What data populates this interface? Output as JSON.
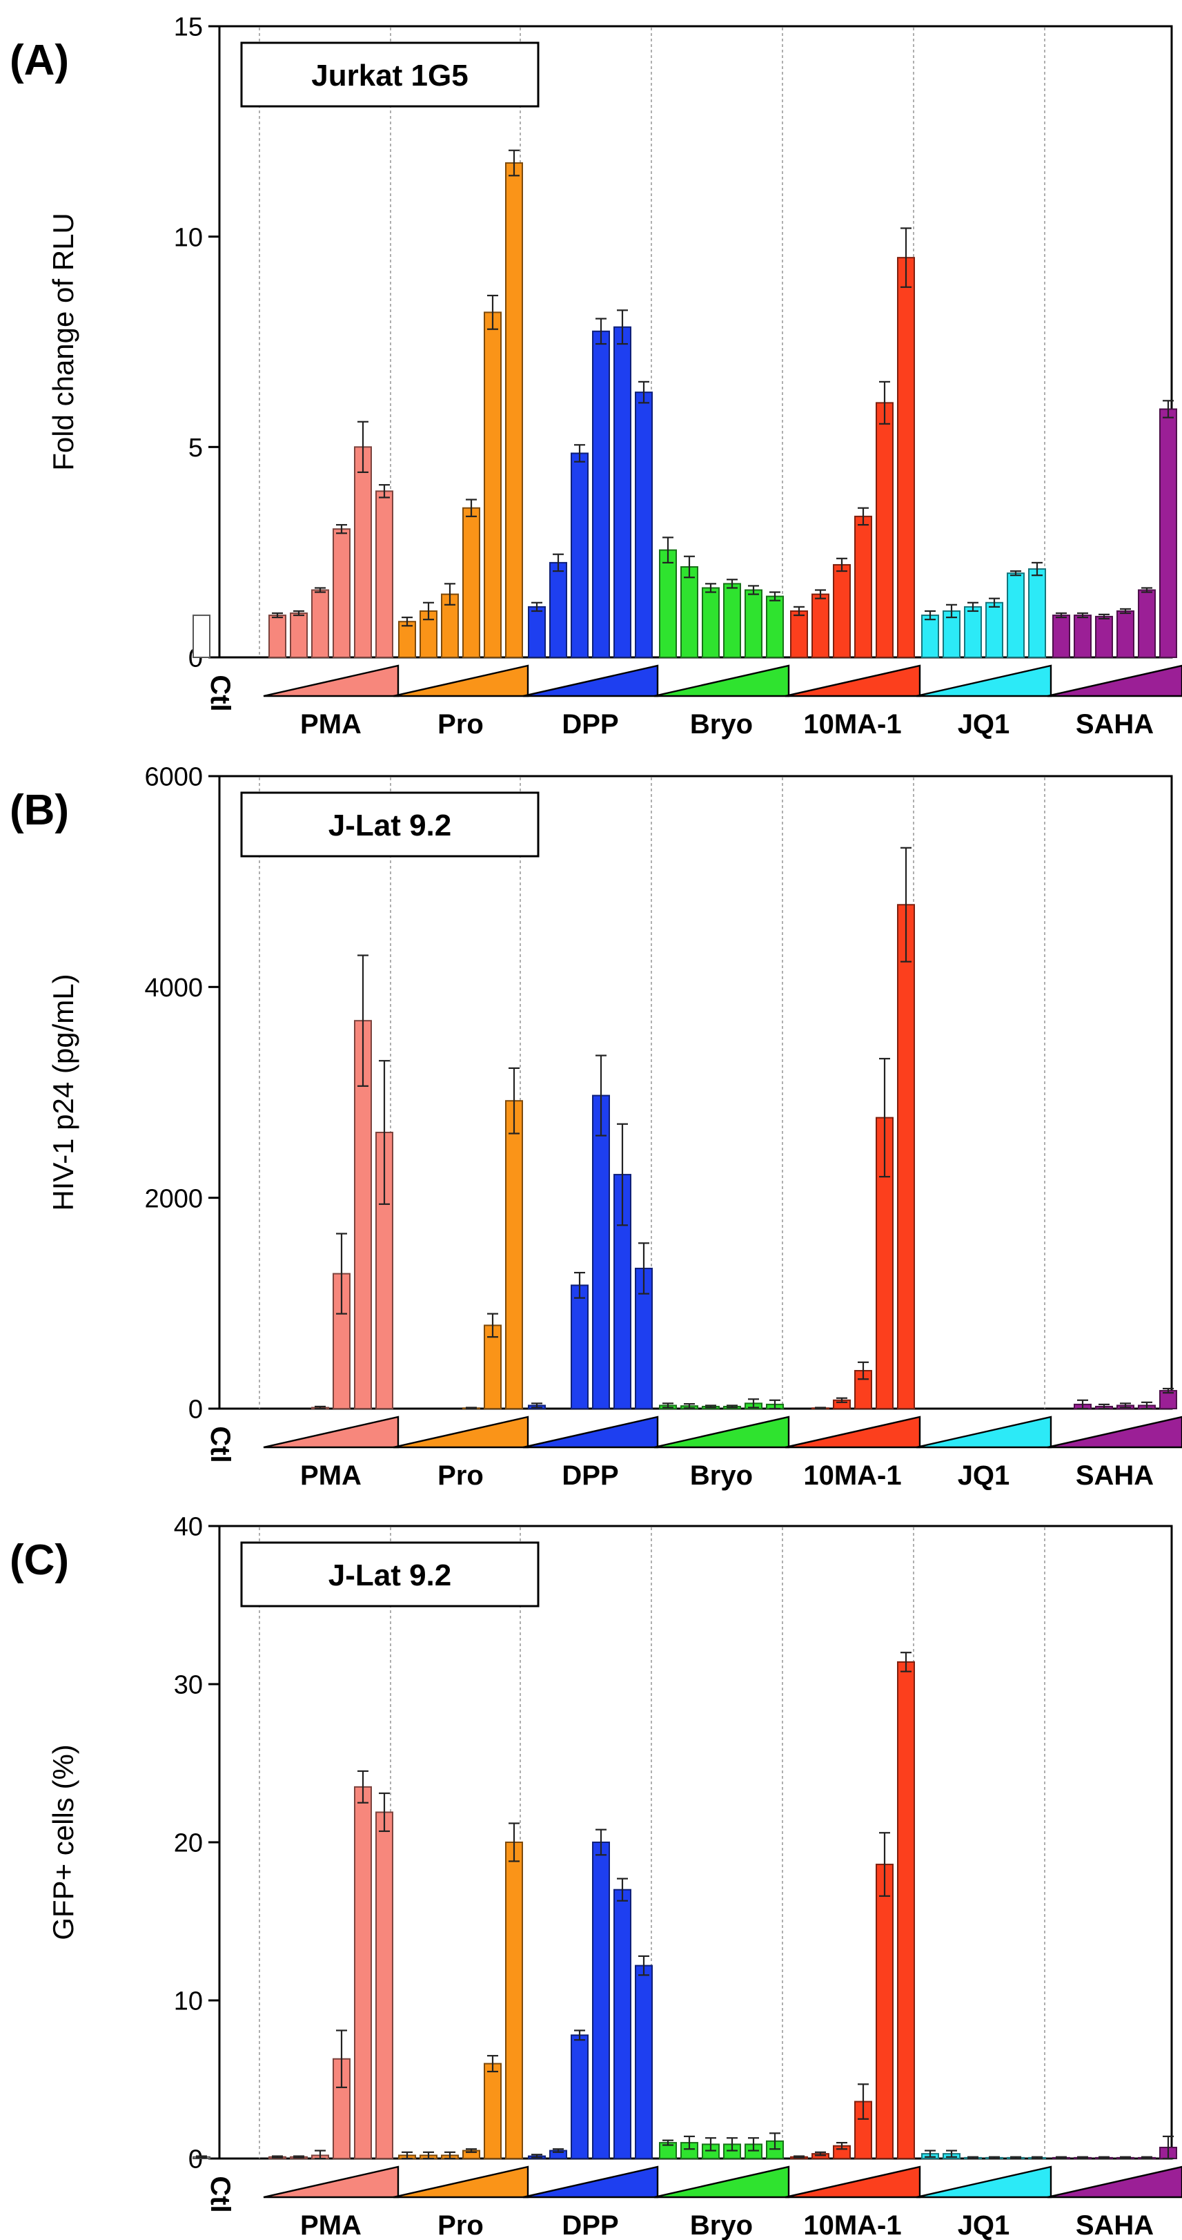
{
  "chart_data": [
    {
      "type": "bar",
      "panel_label": "(A)",
      "title": "Jurkat 1G5",
      "ylabel": "Fold change of RLU",
      "ylim": [
        0,
        15
      ],
      "yticks": [
        0,
        5,
        10,
        15
      ],
      "control_label": "Ctl",
      "control": {
        "value": 1.0,
        "error": 0
      },
      "groups": [
        {
          "name": "PMA",
          "color": "#f7877c",
          "values": [
            1.0,
            1.05,
            1.6,
            3.05,
            5.0,
            3.95
          ],
          "errors": [
            0.05,
            0.05,
            0.05,
            0.1,
            0.6,
            0.15
          ]
        },
        {
          "name": "Pro",
          "color": "#fa9418",
          "values": [
            0.85,
            1.1,
            1.5,
            3.55,
            8.2,
            11.75
          ],
          "errors": [
            0.1,
            0.2,
            0.25,
            0.2,
            0.4,
            0.3
          ]
        },
        {
          "name": "DPP",
          "color": "#1e3ff0",
          "values": [
            1.2,
            2.25,
            4.85,
            7.75,
            7.85,
            6.3
          ],
          "errors": [
            0.1,
            0.2,
            0.2,
            0.3,
            0.4,
            0.25
          ]
        },
        {
          "name": "Bryo",
          "color": "#2fe32f",
          "values": [
            2.55,
            2.15,
            1.65,
            1.75,
            1.6,
            1.45
          ],
          "errors": [
            0.3,
            0.25,
            0.1,
            0.1,
            0.1,
            0.1
          ]
        },
        {
          "name": "10MA-1",
          "color": "#fc3f1d",
          "values": [
            1.1,
            1.5,
            2.2,
            3.35,
            6.05,
            9.5
          ],
          "errors": [
            0.1,
            0.1,
            0.15,
            0.2,
            0.5,
            0.7
          ]
        },
        {
          "name": "JQ1",
          "color": "#2ceaf7",
          "values": [
            1.0,
            1.1,
            1.2,
            1.3,
            2.0,
            2.1
          ],
          "errors": [
            0.1,
            0.15,
            0.1,
            0.1,
            0.05,
            0.15
          ]
        },
        {
          "name": "SAHA",
          "color": "#9b1f96",
          "values": [
            1.0,
            1.0,
            0.97,
            1.1,
            1.6,
            5.9
          ],
          "errors": [
            0.05,
            0.05,
            0.05,
            0.05,
            0.05,
            0.2
          ]
        }
      ]
    },
    {
      "type": "bar",
      "panel_label": "(B)",
      "title": "J-Lat 9.2",
      "ylabel": "HIV-1 p24 (pg/mL)",
      "ylim": [
        0,
        6000
      ],
      "yticks": [
        0,
        2000,
        4000,
        6000
      ],
      "control_label": "Ctl",
      "control": {
        "value": 0,
        "error": 0
      },
      "groups": [
        {
          "name": "PMA",
          "color": "#f7877c",
          "values": [
            0,
            0,
            10,
            1280,
            3680,
            2620
          ],
          "errors": [
            0,
            0,
            10,
            380,
            620,
            680
          ]
        },
        {
          "name": "Pro",
          "color": "#fa9418",
          "values": [
            0,
            0,
            0,
            5,
            790,
            2920
          ],
          "errors": [
            0,
            0,
            0,
            5,
            110,
            310
          ]
        },
        {
          "name": "DPP",
          "color": "#1e3ff0",
          "values": [
            30,
            0,
            1170,
            2970,
            2220,
            1330
          ],
          "errors": [
            20,
            0,
            120,
            380,
            480,
            240
          ]
        },
        {
          "name": "Bryo",
          "color": "#2fe32f",
          "values": [
            30,
            25,
            20,
            20,
            50,
            40
          ],
          "errors": [
            20,
            20,
            10,
            10,
            40,
            40
          ]
        },
        {
          "name": "10MA-1",
          "color": "#fc3f1d",
          "values": [
            0,
            5,
            80,
            360,
            2760,
            4780
          ],
          "errors": [
            0,
            5,
            20,
            80,
            560,
            540
          ]
        },
        {
          "name": "JQ1",
          "color": "#2ceaf7",
          "values": [
            0,
            0,
            0,
            0,
            0,
            0
          ],
          "errors": [
            0,
            0,
            0,
            0,
            0,
            0
          ]
        },
        {
          "name": "SAHA",
          "color": "#9b1f96",
          "values": [
            0,
            40,
            20,
            30,
            30,
            170
          ],
          "errors": [
            0,
            40,
            20,
            20,
            30,
            20
          ]
        }
      ]
    },
    {
      "type": "bar",
      "panel_label": "(C)",
      "title": "J-Lat 9.2",
      "ylabel": "GFP+ cells (%)",
      "ylim": [
        0,
        40
      ],
      "yticks": [
        0,
        10,
        20,
        30,
        40
      ],
      "control_label": "Ctl",
      "control": {
        "value": 0.1,
        "error": 0.05
      },
      "groups": [
        {
          "name": "PMA",
          "color": "#f7877c",
          "values": [
            0.1,
            0.1,
            0.2,
            6.3,
            23.5,
            21.9
          ],
          "errors": [
            0.05,
            0.05,
            0.3,
            1.8,
            1.0,
            1.2
          ]
        },
        {
          "name": "Pro",
          "color": "#fa9418",
          "values": [
            0.2,
            0.2,
            0.2,
            0.5,
            6.0,
            20.0
          ],
          "errors": [
            0.2,
            0.2,
            0.2,
            0.1,
            0.5,
            1.2
          ]
        },
        {
          "name": "DPP",
          "color": "#1e3ff0",
          "values": [
            0.15,
            0.5,
            7.8,
            20.0,
            17.0,
            12.2
          ],
          "errors": [
            0.1,
            0.1,
            0.3,
            0.8,
            0.7,
            0.6
          ]
        },
        {
          "name": "Bryo",
          "color": "#2fe32f",
          "values": [
            1.0,
            1.0,
            0.9,
            0.9,
            0.9,
            1.1
          ],
          "errors": [
            0.15,
            0.4,
            0.4,
            0.4,
            0.4,
            0.5
          ]
        },
        {
          "name": "10MA-1",
          "color": "#fc3f1d",
          "values": [
            0.1,
            0.3,
            0.8,
            3.6,
            18.6,
            31.4
          ],
          "errors": [
            0.05,
            0.1,
            0.2,
            1.1,
            2.0,
            0.6
          ]
        },
        {
          "name": "JQ1",
          "color": "#2ceaf7",
          "values": [
            0.3,
            0.3,
            0.05,
            0.05,
            0.05,
            0.05
          ],
          "errors": [
            0.2,
            0.2,
            0.05,
            0.05,
            0.05,
            0.05
          ]
        },
        {
          "name": "SAHA",
          "color": "#9b1f96",
          "values": [
            0.05,
            0.05,
            0.05,
            0.05,
            0.05,
            0.7
          ],
          "errors": [
            0.05,
            0.05,
            0.05,
            0.05,
            0.05,
            0.7
          ]
        }
      ]
    }
  ]
}
